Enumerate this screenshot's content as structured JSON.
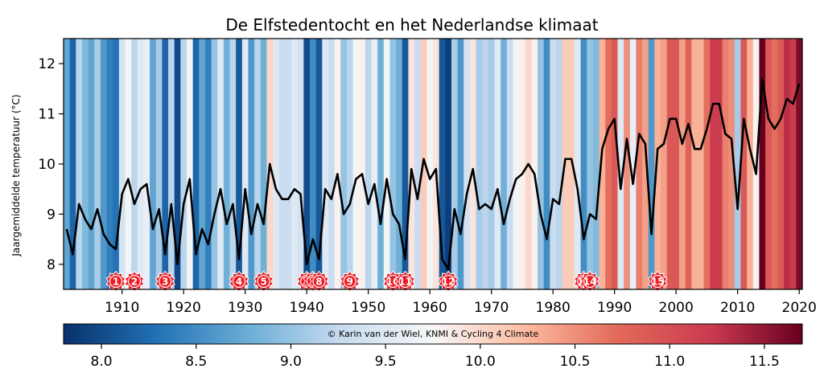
{
  "chart_data": {
    "type": "line",
    "title": "De Elfstedentocht en het Nederlandse klimaat",
    "ylabel": "Jaargemiddelde temperatuur (°C)",
    "xlabel": "",
    "x_start": 1901,
    "x_end": 2020,
    "xlim": [
      1900.5,
      2020.5
    ],
    "ylim": [
      7.5,
      12.5
    ],
    "xticks": [
      1910,
      1920,
      1930,
      1940,
      1950,
      1960,
      1970,
      1980,
      1990,
      2000,
      2010,
      2020
    ],
    "yticks": [
      8,
      9,
      10,
      11,
      12
    ],
    "grid": false,
    "series": [
      {
        "values": [
          8.7,
          8.2,
          9.2,
          8.9,
          8.7,
          9.1,
          8.6,
          8.4,
          8.3,
          9.4,
          9.7,
          9.2,
          9.5,
          9.6,
          8.7,
          9.1,
          8.2,
          9.2,
          8.0,
          9.2,
          9.7,
          8.2,
          8.7,
          8.4,
          9.0,
          9.5,
          8.8,
          9.2,
          8.1,
          9.5,
          8.6,
          9.2,
          8.8,
          10.0,
          9.5,
          9.3,
          9.3,
          9.5,
          9.4,
          8.0,
          8.5,
          8.1,
          9.5,
          9.3,
          9.8,
          9.0,
          9.2,
          9.7,
          9.8,
          9.2,
          9.6,
          8.8,
          9.7,
          9.0,
          8.8,
          8.1,
          9.9,
          9.3,
          10.1,
          9.7,
          9.9,
          8.1,
          7.9,
          9.1,
          8.6,
          9.4,
          9.9,
          9.1,
          9.2,
          9.1,
          9.5,
          8.8,
          9.3,
          9.7,
          9.8,
          10.0,
          9.8,
          9.0,
          8.5,
          9.3,
          9.2,
          10.1,
          10.1,
          9.5,
          8.5,
          9.0,
          8.9,
          10.3,
          10.7,
          10.9,
          9.5,
          10.5,
          9.6,
          10.6,
          10.4,
          8.6,
          10.3,
          10.4,
          10.9,
          10.9,
          10.4,
          10.8,
          10.3,
          10.3,
          10.7,
          11.2,
          11.2,
          10.6,
          10.5,
          9.1,
          10.9,
          10.3,
          9.8,
          11.7,
          10.9,
          10.7,
          10.9,
          11.3,
          11.2,
          11.6
        ]
      }
    ],
    "markers": [
      {
        "label": "1",
        "year": 1909
      },
      {
        "label": "2",
        "year": 1912
      },
      {
        "label": "3",
        "year": 1917
      },
      {
        "label": "4",
        "year": 1929
      },
      {
        "label": "5",
        "year": 1933
      },
      {
        "label": "",
        "year": 1940
      },
      {
        "label": "",
        "year": 1941
      },
      {
        "label": "8",
        "year": 1942
      },
      {
        "label": "9",
        "year": 1947
      },
      {
        "label": "10",
        "year": 1954
      },
      {
        "label": "11",
        "year": 1956
      },
      {
        "label": "12",
        "year": 1963
      },
      {
        "label": "13",
        "year": 1985
      },
      {
        "label": "14",
        "year": 1986
      },
      {
        "label": "15",
        "year": 1997
      }
    ],
    "colorbar": {
      "min": 7.8,
      "max": 11.7,
      "ticks": [
        8.0,
        8.5,
        9.0,
        9.5,
        10.0,
        10.5,
        11.0,
        11.5
      ],
      "tick_labels": [
        "8.0",
        "8.5",
        "9.0",
        "9.5",
        "10.0",
        "10.5",
        "11.0",
        "11.5"
      ],
      "colors": [
        "#08306b",
        "#2171b5",
        "#6baed6",
        "#c6dbef",
        "#f7f7f7",
        "#fcbba1",
        "#e26a5a",
        "#cb3b4f",
        "#67001f"
      ]
    },
    "credit": "© Karin van der Wiel, KNMI & Cycling 4 Climate",
    "marker_color": "#ee1c25",
    "line_color": "#000000"
  }
}
